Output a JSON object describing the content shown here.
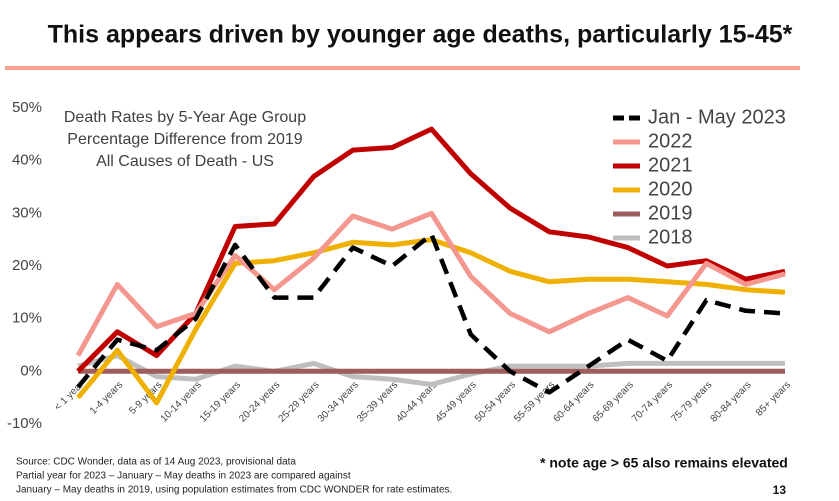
{
  "headline": "This appears driven by younger age deaths, particularly 15-45*",
  "chart_data": {
    "type": "line",
    "title_lines": [
      "Death Rates by 5-Year Age Group",
      "Percentage Difference from 2019",
      "All Causes of Death - US"
    ],
    "categories": [
      "< 1 year",
      "1-4 years",
      "5-9 years",
      "10-14 years",
      "15-19 years",
      "20-24 years",
      "25-29 years",
      "30-34 years",
      "35-39 years",
      "40-44 years",
      "45-49 years",
      "50-54 years",
      "55-59 years",
      "60-64 years",
      "65-69 years",
      "70-74 years",
      "75-79 years",
      "80-84 years",
      "85+ years"
    ],
    "series": [
      {
        "name": "Jan - May 2023",
        "color": "#000000",
        "dashed": true,
        "values": [
          -3,
          6,
          4,
          10,
          24,
          14,
          14,
          23.5,
          20,
          26,
          7,
          0,
          -4,
          1,
          6,
          2,
          13.5,
          11.5,
          11
        ]
      },
      {
        "name": "2022",
        "color": "#f4978e",
        "values": [
          3,
          16.5,
          8.5,
          11,
          22,
          15.5,
          21.5,
          29.5,
          27,
          30,
          18,
          11,
          7.5,
          11,
          14,
          10.5,
          20.5,
          16.5,
          18.5
        ]
      },
      {
        "name": "2021",
        "color": "#c00000",
        "values": [
          0,
          7.5,
          3,
          11,
          27.5,
          28,
          37,
          42,
          42.5,
          46,
          37.5,
          31,
          26.5,
          25.5,
          23.5,
          20,
          21,
          17.5,
          19
        ]
      },
      {
        "name": "2020",
        "color": "#f0b000",
        "values": [
          -5,
          4,
          -6,
          8,
          20.5,
          21,
          22.5,
          24.5,
          24,
          25,
          22.5,
          19,
          17,
          17.5,
          17.5,
          17,
          16.5,
          15.5,
          15
        ]
      },
      {
        "name": "2019",
        "color": "#9e5c5c",
        "values": [
          0,
          0,
          0,
          0,
          0,
          0,
          0,
          0,
          0,
          0,
          0,
          0,
          0,
          0,
          0,
          0,
          0,
          0,
          0
        ]
      },
      {
        "name": "2018",
        "color": "#bfbfbf",
        "values": [
          1,
          3,
          -1,
          -1.5,
          1,
          0,
          1.5,
          -1,
          -1.5,
          -2.5,
          -0.5,
          1,
          1,
          1,
          1.5,
          1.5,
          1.5,
          1.5,
          1.5
        ]
      }
    ],
    "ylim": [
      -10,
      50
    ],
    "yticks": [
      {
        "value": 50,
        "label": "50%"
      },
      {
        "value": 40,
        "label": "40%"
      },
      {
        "value": 30,
        "label": "30%"
      },
      {
        "value": 20,
        "label": "20%"
      },
      {
        "value": 10,
        "label": "10%"
      },
      {
        "value": 0,
        "label": "0%"
      },
      {
        "value": -10,
        "label": "-10%"
      }
    ],
    "legend": "upper right"
  },
  "footnotes": [
    "Source: CDC Wonder, data as of 14 Aug 2023, provisional data",
    "Partial year for 2023 – January – May deaths in 2023 are compared against",
    "January – May deaths in 2019, using population estimates from CDC WONDER for rate estimates."
  ],
  "note": "* note age > 65 also remains elevated",
  "page_number": "13"
}
